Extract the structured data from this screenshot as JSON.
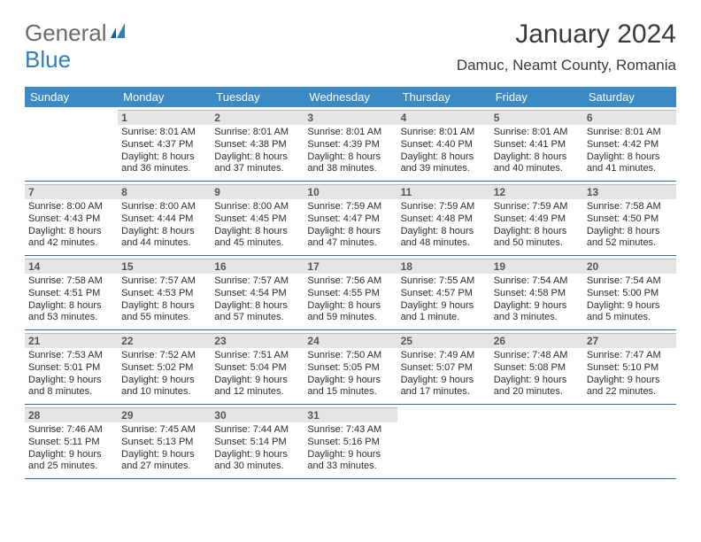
{
  "brand": {
    "word1": "General",
    "word2": "Blue"
  },
  "title": "January 2024",
  "location": "Damuc, Neamt County, Romania",
  "colors": {
    "header_bg": "#3b8ac4",
    "header_text": "#ffffff",
    "daynum_bg": "#e5e5e5",
    "daynum_border": "#b8b8b8",
    "row_border": "#2f6fa3",
    "body_text": "#2b2b2b",
    "title_text": "#3a3a3a",
    "logo_gray": "#6b6b6b",
    "logo_blue": "#2f7ec2"
  },
  "weekdays": [
    "Sunday",
    "Monday",
    "Tuesday",
    "Wednesday",
    "Thursday",
    "Friday",
    "Saturday"
  ],
  "weeks": [
    [
      null,
      {
        "n": "1",
        "l1": "Sunrise: 8:01 AM",
        "l2": "Sunset: 4:37 PM",
        "l3": "Daylight: 8 hours",
        "l4": "and 36 minutes."
      },
      {
        "n": "2",
        "l1": "Sunrise: 8:01 AM",
        "l2": "Sunset: 4:38 PM",
        "l3": "Daylight: 8 hours",
        "l4": "and 37 minutes."
      },
      {
        "n": "3",
        "l1": "Sunrise: 8:01 AM",
        "l2": "Sunset: 4:39 PM",
        "l3": "Daylight: 8 hours",
        "l4": "and 38 minutes."
      },
      {
        "n": "4",
        "l1": "Sunrise: 8:01 AM",
        "l2": "Sunset: 4:40 PM",
        "l3": "Daylight: 8 hours",
        "l4": "and 39 minutes."
      },
      {
        "n": "5",
        "l1": "Sunrise: 8:01 AM",
        "l2": "Sunset: 4:41 PM",
        "l3": "Daylight: 8 hours",
        "l4": "and 40 minutes."
      },
      {
        "n": "6",
        "l1": "Sunrise: 8:01 AM",
        "l2": "Sunset: 4:42 PM",
        "l3": "Daylight: 8 hours",
        "l4": "and 41 minutes."
      }
    ],
    [
      {
        "n": "7",
        "l1": "Sunrise: 8:00 AM",
        "l2": "Sunset: 4:43 PM",
        "l3": "Daylight: 8 hours",
        "l4": "and 42 minutes."
      },
      {
        "n": "8",
        "l1": "Sunrise: 8:00 AM",
        "l2": "Sunset: 4:44 PM",
        "l3": "Daylight: 8 hours",
        "l4": "and 44 minutes."
      },
      {
        "n": "9",
        "l1": "Sunrise: 8:00 AM",
        "l2": "Sunset: 4:45 PM",
        "l3": "Daylight: 8 hours",
        "l4": "and 45 minutes."
      },
      {
        "n": "10",
        "l1": "Sunrise: 7:59 AM",
        "l2": "Sunset: 4:47 PM",
        "l3": "Daylight: 8 hours",
        "l4": "and 47 minutes."
      },
      {
        "n": "11",
        "l1": "Sunrise: 7:59 AM",
        "l2": "Sunset: 4:48 PM",
        "l3": "Daylight: 8 hours",
        "l4": "and 48 minutes."
      },
      {
        "n": "12",
        "l1": "Sunrise: 7:59 AM",
        "l2": "Sunset: 4:49 PM",
        "l3": "Daylight: 8 hours",
        "l4": "and 50 minutes."
      },
      {
        "n": "13",
        "l1": "Sunrise: 7:58 AM",
        "l2": "Sunset: 4:50 PM",
        "l3": "Daylight: 8 hours",
        "l4": "and 52 minutes."
      }
    ],
    [
      {
        "n": "14",
        "l1": "Sunrise: 7:58 AM",
        "l2": "Sunset: 4:51 PM",
        "l3": "Daylight: 8 hours",
        "l4": "and 53 minutes."
      },
      {
        "n": "15",
        "l1": "Sunrise: 7:57 AM",
        "l2": "Sunset: 4:53 PM",
        "l3": "Daylight: 8 hours",
        "l4": "and 55 minutes."
      },
      {
        "n": "16",
        "l1": "Sunrise: 7:57 AM",
        "l2": "Sunset: 4:54 PM",
        "l3": "Daylight: 8 hours",
        "l4": "and 57 minutes."
      },
      {
        "n": "17",
        "l1": "Sunrise: 7:56 AM",
        "l2": "Sunset: 4:55 PM",
        "l3": "Daylight: 8 hours",
        "l4": "and 59 minutes."
      },
      {
        "n": "18",
        "l1": "Sunrise: 7:55 AM",
        "l2": "Sunset: 4:57 PM",
        "l3": "Daylight: 9 hours",
        "l4": "and 1 minute."
      },
      {
        "n": "19",
        "l1": "Sunrise: 7:54 AM",
        "l2": "Sunset: 4:58 PM",
        "l3": "Daylight: 9 hours",
        "l4": "and 3 minutes."
      },
      {
        "n": "20",
        "l1": "Sunrise: 7:54 AM",
        "l2": "Sunset: 5:00 PM",
        "l3": "Daylight: 9 hours",
        "l4": "and 5 minutes."
      }
    ],
    [
      {
        "n": "21",
        "l1": "Sunrise: 7:53 AM",
        "l2": "Sunset: 5:01 PM",
        "l3": "Daylight: 9 hours",
        "l4": "and 8 minutes."
      },
      {
        "n": "22",
        "l1": "Sunrise: 7:52 AM",
        "l2": "Sunset: 5:02 PM",
        "l3": "Daylight: 9 hours",
        "l4": "and 10 minutes."
      },
      {
        "n": "23",
        "l1": "Sunrise: 7:51 AM",
        "l2": "Sunset: 5:04 PM",
        "l3": "Daylight: 9 hours",
        "l4": "and 12 minutes."
      },
      {
        "n": "24",
        "l1": "Sunrise: 7:50 AM",
        "l2": "Sunset: 5:05 PM",
        "l3": "Daylight: 9 hours",
        "l4": "and 15 minutes."
      },
      {
        "n": "25",
        "l1": "Sunrise: 7:49 AM",
        "l2": "Sunset: 5:07 PM",
        "l3": "Daylight: 9 hours",
        "l4": "and 17 minutes."
      },
      {
        "n": "26",
        "l1": "Sunrise: 7:48 AM",
        "l2": "Sunset: 5:08 PM",
        "l3": "Daylight: 9 hours",
        "l4": "and 20 minutes."
      },
      {
        "n": "27",
        "l1": "Sunrise: 7:47 AM",
        "l2": "Sunset: 5:10 PM",
        "l3": "Daylight: 9 hours",
        "l4": "and 22 minutes."
      }
    ],
    [
      {
        "n": "28",
        "l1": "Sunrise: 7:46 AM",
        "l2": "Sunset: 5:11 PM",
        "l3": "Daylight: 9 hours",
        "l4": "and 25 minutes."
      },
      {
        "n": "29",
        "l1": "Sunrise: 7:45 AM",
        "l2": "Sunset: 5:13 PM",
        "l3": "Daylight: 9 hours",
        "l4": "and 27 minutes."
      },
      {
        "n": "30",
        "l1": "Sunrise: 7:44 AM",
        "l2": "Sunset: 5:14 PM",
        "l3": "Daylight: 9 hours",
        "l4": "and 30 minutes."
      },
      {
        "n": "31",
        "l1": "Sunrise: 7:43 AM",
        "l2": "Sunset: 5:16 PM",
        "l3": "Daylight: 9 hours",
        "l4": "and 33 minutes."
      },
      null,
      null,
      null
    ]
  ]
}
